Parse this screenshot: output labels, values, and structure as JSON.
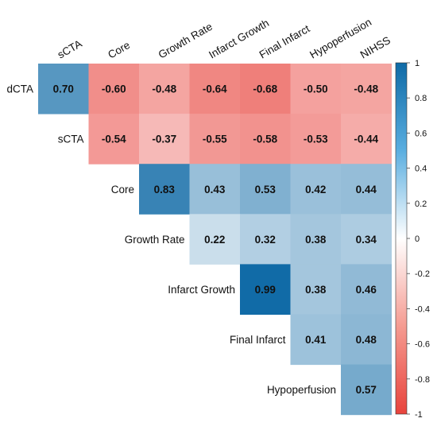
{
  "chart_data": {
    "type": "heatmap",
    "title": "",
    "columns": [
      "sCTA",
      "Core",
      "Growth Rate",
      "Infarct Growth",
      "Final Infarct",
      "Hypoperfusion",
      "NIHSS"
    ],
    "rows": [
      "dCTA",
      "sCTA",
      "Core",
      "Growth Rate",
      "Infarct Growth",
      "Final Infarct",
      "Hypoperfusion"
    ],
    "values": [
      [
        0.7,
        -0.6,
        -0.48,
        -0.64,
        -0.68,
        -0.5,
        -0.48
      ],
      [
        null,
        -0.54,
        -0.37,
        -0.55,
        -0.58,
        -0.53,
        -0.44
      ],
      [
        null,
        null,
        0.83,
        0.43,
        0.53,
        0.42,
        0.44
      ],
      [
        null,
        null,
        null,
        0.22,
        0.32,
        0.38,
        0.34
      ],
      [
        null,
        null,
        null,
        null,
        0.99,
        0.38,
        0.46
      ],
      [
        null,
        null,
        null,
        null,
        null,
        0.41,
        0.48
      ],
      [
        null,
        null,
        null,
        null,
        null,
        null,
        0.57
      ]
    ],
    "value_range": [
      -1,
      1
    ],
    "colorbar": {
      "ticks": [
        "1",
        "0.8",
        "0.6",
        "0.4",
        "0.2",
        "0",
        "-0.2",
        "-0.4",
        "-0.6",
        "-0.8",
        "-1"
      ],
      "colors": {
        "negative": "#e8433c",
        "zero": "#ffffff",
        "positive": "#0f6aa6"
      }
    },
    "grid": false,
    "legend": "right"
  }
}
